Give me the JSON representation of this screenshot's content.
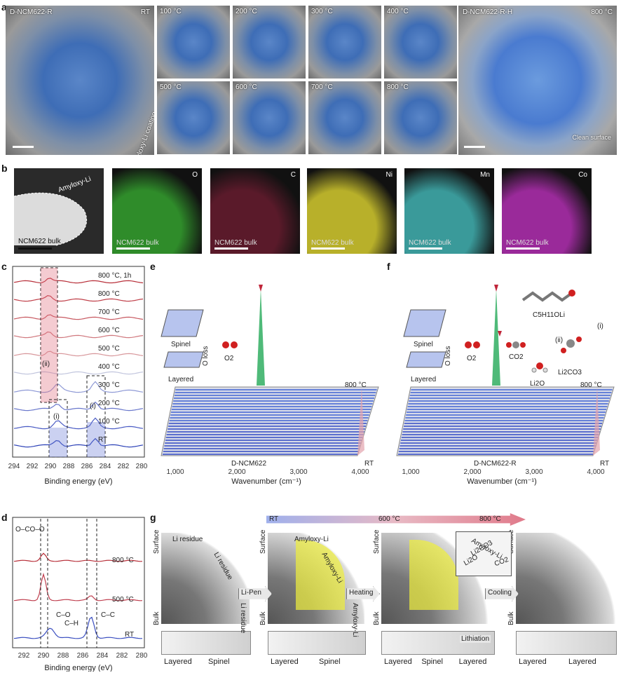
{
  "panel_labels": {
    "a": "a",
    "b": "b",
    "c": "c",
    "d": "d",
    "e": "e",
    "f": "f",
    "g": "g"
  },
  "panel_a": {
    "left_title": "D-NCM622-R",
    "left_temp": "RT",
    "left_note": "Amyloxy-Li coating",
    "tiles": [
      "100 °C",
      "200 °C",
      "300 °C",
      "400 °C",
      "500 °C",
      "600 °C",
      "700 °C",
      "800 °C"
    ],
    "right_title": "D-NCM622-R-H",
    "right_temp": "800 °C",
    "right_note": "Clean surface"
  },
  "panel_b": {
    "sem_callout": "Amyloxy-Li",
    "sem_bulk": "NCM622 bulk",
    "maps": [
      {
        "element": "O",
        "bulk": "NCM622 bulk",
        "color": "#2f8c2a"
      },
      {
        "element": "C",
        "bulk": "NCM622 bulk",
        "color": "#5a1a2a"
      },
      {
        "element": "Ni",
        "bulk": "NCM622 bulk",
        "color": "#b8b02a"
      },
      {
        "element": "Mn",
        "bulk": "NCM622 bulk",
        "color": "#3a9a9a"
      },
      {
        "element": "Co",
        "bulk": "NCM622 bulk",
        "color": "#9a2a9a"
      }
    ]
  },
  "panel_c": {
    "traces": [
      "800 °C, 1h",
      "800 °C",
      "700 °C",
      "600 °C",
      "500 °C",
      "400 °C",
      "300 °C",
      "200 °C",
      "100 °C",
      "RT"
    ],
    "box_labels": [
      "(ii)",
      "(i)",
      "(i)"
    ],
    "xticks": [
      "294",
      "292",
      "290",
      "288",
      "286",
      "284",
      "282",
      "280"
    ],
    "xlabel": "Binding energy (eV)"
  },
  "panel_d": {
    "traces": [
      "800 °C",
      "500 °C",
      "RT"
    ],
    "peak_labels": {
      "oco": "O–CO–O",
      "co": "C–O",
      "ch": "C–H",
      "cc": "C–C"
    },
    "xticks": [
      "292",
      "290",
      "288",
      "286",
      "284",
      "282",
      "280"
    ],
    "xlabel": "Binding energy (eV)"
  },
  "panel_e": {
    "spinel": "Spinel",
    "layered": "Layered",
    "oloss": "O loss",
    "o2": "O2",
    "sample": "D-NCM622",
    "top": "800 °C",
    "bottom": "RT",
    "xticks": [
      "1,000",
      "2,000",
      "3,000",
      "4,000"
    ],
    "xlabel": "Wavenumber (cm⁻¹)"
  },
  "panel_f": {
    "spinel": "Spinel",
    "layered": "Layered",
    "oloss": "O loss",
    "o2": "O2",
    "co2": "CO2",
    "molecule": "C5H11OLi",
    "step1": "(i)",
    "step2": "(ii)",
    "li2o": "Li2O",
    "li2co3": "Li2CO3",
    "sample": "D-NCM622-R",
    "top": "800 °C",
    "bottom": "RT",
    "xticks": [
      "1,000",
      "2,000",
      "3,000",
      "4,000"
    ],
    "xlabel": "Wavenumber (cm⁻¹)"
  },
  "panel_g": {
    "gradient_left": "RT",
    "gradient_mid": "600 °C",
    "gradient_right": "800 °C",
    "steps": [
      "Li-Pen",
      "Heating",
      "Cooling"
    ],
    "surface": "Surface",
    "bulk": "Bulk",
    "li_residue": "Li residue",
    "amyloxy": "Amyloxy-Li",
    "inset": {
      "amyloxy": "Amyloxy-Li",
      "li2co3": "Li2CO3",
      "li2o": "Li2O",
      "co2": "CO2"
    },
    "lithiation": "Lithiation",
    "bottoms": [
      [
        "Layered",
        "Spinel"
      ],
      [
        "Layered",
        "Spinel"
      ],
      [
        "Layered",
        "Spinel",
        "Layered"
      ],
      [
        "Layered",
        "Layered"
      ]
    ]
  }
}
